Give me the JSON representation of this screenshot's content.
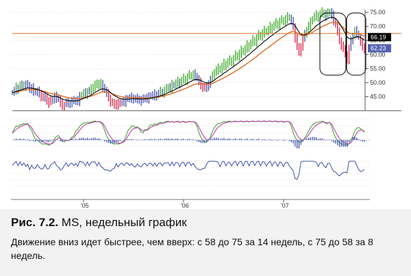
{
  "figure": {
    "label": "Рис. 7.2.",
    "title": "MS, недельный график",
    "body": "Движение вниз идет быстрее, чем вверх: с 58 до 75 за 14 недель, с 75 до 58 за 8 недель."
  },
  "chart_data": [
    {
      "type": "ohlc",
      "panel": "price",
      "y_ticks": [
        "75.00",
        "70.00",
        "65.00",
        "60.00",
        "55.00",
        "50.00",
        "45.00"
      ],
      "ylim": [
        40,
        76
      ],
      "x_ticks": [
        "'05",
        "'06",
        "'07"
      ],
      "x_tick_weeks": [
        37,
        89,
        141
      ],
      "last_values": [
        {
          "label": "66.19",
          "color": "#000000"
        },
        {
          "label": "62.23",
          "color": "#5561b0"
        }
      ],
      "price_ref_color": "#e06a1e",
      "weeks": 188,
      "close": [
        46.5,
        47.2,
        48.4,
        47.8,
        49.1,
        48.6,
        49.5,
        48.8,
        49.3,
        47.6,
        48.2,
        47.1,
        46.4,
        47.0,
        46.2,
        45.1,
        44.3,
        45.0,
        43.6,
        42.8,
        43.5,
        44.1,
        45.2,
        44.6,
        44.0,
        42.5,
        41.8,
        42.2,
        43.1,
        42.4,
        43.0,
        43.6,
        43.2,
        44.0,
        43.4,
        45.1,
        45.8,
        46.4,
        45.9,
        47.2,
        46.6,
        47.8,
        48.7,
        49.5,
        48.9,
        50.1,
        49.3,
        48.6,
        47.2,
        46.1,
        44.8,
        43.2,
        42.6,
        41.9,
        43.0,
        42.2,
        42.8,
        43.5,
        43.1,
        44.0,
        44.6,
        44.2,
        44.9,
        44.3,
        43.8,
        44.5,
        44.0,
        43.6,
        44.2,
        44.8,
        44.3,
        45.0,
        45.6,
        45.1,
        46.0,
        45.4,
        46.2,
        46.9,
        46.4,
        47.3,
        47.9,
        48.6,
        48.1,
        49.4,
        48.8,
        49.9,
        50.5,
        49.7,
        50.8,
        51.6,
        50.9,
        52.0,
        52.8,
        52.3,
        53.1,
        52.5,
        51.4,
        50.2,
        49.1,
        48.5,
        47.8,
        48.6,
        49.9,
        51.2,
        52.4,
        53.9,
        54.6,
        55.2,
        54.4,
        55.8,
        56.9,
        56.2,
        57.4,
        58.1,
        57.5,
        58.6,
        59.9,
        59.2,
        60.5,
        61.6,
        60.8,
        62.2,
        63.5,
        62.7,
        64.1,
        65.3,
        64.6,
        65.9,
        67.2,
        66.4,
        67.8,
        68.6,
        67.9,
        68.9,
        70.1,
        69.4,
        70.6,
        71.3,
        70.5,
        71.9,
        72.4,
        71.6,
        72.8,
        73.5,
        72.9,
        71.8,
        70.2,
        66.0,
        62.5,
        60.8,
        63.1,
        65.4,
        67.2,
        68.9,
        70.4,
        71.6,
        72.8,
        73.6,
        74.2,
        73.4,
        74.5,
        75.2,
        74.6,
        73.8,
        74.9,
        75.3,
        74.1,
        72.2,
        70.5,
        68.0,
        65.2,
        63.4,
        61.8,
        60.2,
        58.3,
        62.2,
        64.8,
        66.9,
        68.5,
        67.6,
        66.1,
        64.3,
        63.0,
        62.2
      ],
      "series": [
        {
          "name": "",
          "color": "#000000"
        },
        {
          "name": "",
          "color": "#e06a1e"
        }
      ]
    },
    {
      "type": "line",
      "panel": "stochastic",
      "series": [
        {
          "name": "",
          "color": "#3faa2c"
        },
        {
          "name": "",
          "color": "#c23bb5"
        }
      ]
    },
    {
      "type": "bar",
      "panel": "macd-histogram",
      "color": "#3b4fa8"
    },
    {
      "type": "line",
      "panel": "force-index",
      "color": "#3b4fa8"
    }
  ],
  "colors": {
    "bar_up": "#3faa2c",
    "bar_down": "#d6284b",
    "bar_neutral": "#4a56b0",
    "grid": "#e6b0b0"
  }
}
